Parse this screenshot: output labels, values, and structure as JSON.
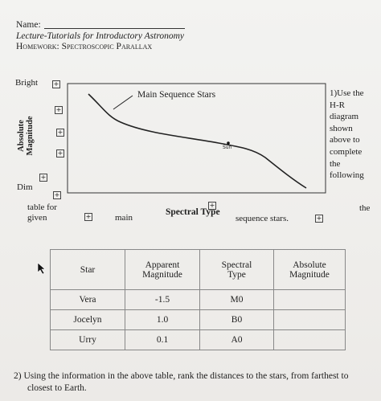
{
  "header": {
    "name_label": "Name:",
    "course": "Lecture-Tutorials for Introductory Astronomy",
    "homework": "Homework: Spectroscopic Parallax"
  },
  "chart": {
    "bright_label": "Bright",
    "dim_label": "Dim",
    "y_axis_label_line1": "Absolute",
    "y_axis_label_line2": "Magnitude",
    "x_axis_label": "Spectral Type",
    "main_sequence_label": "Main Sequence Stars",
    "sun_label": "Sun"
  },
  "question1": {
    "side_lines": [
      "1)Use the",
      "H-R",
      "diagram",
      "shown",
      "above to",
      "complete",
      "the",
      "following"
    ],
    "the_word": "the",
    "table_for": "table for",
    "given": "given",
    "main": "main",
    "sequence_stars": "sequence stars."
  },
  "table": {
    "headers": [
      [
        "Star"
      ],
      [
        "Apparent",
        "Magnitude"
      ],
      [
        "Spectral",
        "Type"
      ],
      [
        "Absolute",
        "Magnitude"
      ]
    ],
    "rows": [
      {
        "star": "Vera",
        "apparent": "-1.5",
        "type": "M0",
        "absolute": ""
      },
      {
        "star": "Jocelyn",
        "apparent": "1.0",
        "type": "B0",
        "absolute": ""
      },
      {
        "star": "Urry",
        "apparent": "0.1",
        "type": "A0",
        "absolute": ""
      }
    ]
  },
  "question2": {
    "line1": "2)  Using the information in the above table, rank the distances to the stars, from farthest to",
    "line2": "closest to Earth."
  },
  "icons": {
    "expand_icon": "plus-box-icon",
    "cursor_icon": "arrow-cursor-icon"
  }
}
